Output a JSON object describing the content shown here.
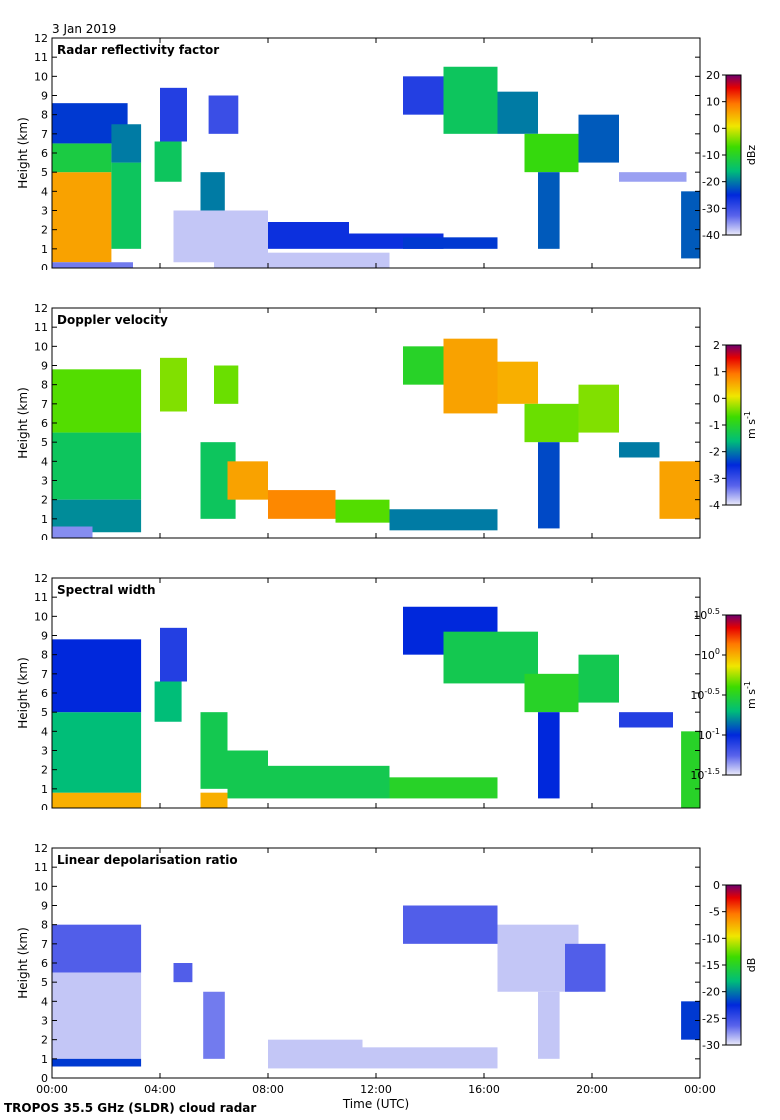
{
  "header": {
    "date": "3 Jan 2019"
  },
  "footer": {
    "instrument": "TROPOS 35.5 GHz (SLDR) cloud radar"
  },
  "chart_data": [
    {
      "type": "heatmap",
      "title": "Radar reflectivity factor",
      "xlabel": "Time (UTC)",
      "ylabel": "Height (km)",
      "xlim": [
        0,
        24
      ],
      "ylim": [
        0,
        12
      ],
      "xticks": [
        "00:00",
        "04:00",
        "08:00",
        "12:00",
        "16:00",
        "20:00",
        "00:00"
      ],
      "yticks": [
        0,
        1,
        2,
        3,
        4,
        5,
        6,
        7,
        8,
        9,
        10,
        11,
        12
      ],
      "colorbar": {
        "label": "dBz",
        "min": -40,
        "max": 20,
        "ticks": [
          20,
          10,
          0,
          -10,
          -20,
          -30,
          -40
        ]
      },
      "cells": [
        {
          "t0": 0.0,
          "t1": 2.2,
          "h0": 0.3,
          "h1": 5.0,
          "v": 6
        },
        {
          "t0": 0.0,
          "t1": 2.2,
          "h0": 5.0,
          "h1": 6.5,
          "v": -12
        },
        {
          "t0": 0.0,
          "t1": 2.8,
          "h0": 6.5,
          "h1": 8.6,
          "v": -24
        },
        {
          "t0": 2.2,
          "t1": 3.3,
          "h0": 1.0,
          "h1": 5.5,
          "v": -14
        },
        {
          "t0": 2.2,
          "t1": 3.3,
          "h0": 5.5,
          "h1": 7.5,
          "v": -20
        },
        {
          "t0": 0.0,
          "t1": 3.0,
          "h0": 0.0,
          "h1": 0.3,
          "v": -34
        },
        {
          "t0": 3.8,
          "t1": 4.8,
          "h0": 4.5,
          "h1": 6.6,
          "v": -14
        },
        {
          "t0": 4.0,
          "t1": 5.0,
          "h0": 6.6,
          "h1": 9.4,
          "v": -28
        },
        {
          "t0": 5.5,
          "t1": 6.4,
          "h0": 1.5,
          "h1": 5.0,
          "v": -20
        },
        {
          "t0": 5.8,
          "t1": 6.9,
          "h0": 7.0,
          "h1": 9.0,
          "v": -30
        },
        {
          "t0": 4.5,
          "t1": 8.0,
          "h0": 0.3,
          "h1": 3.0,
          "v": -38
        },
        {
          "t0": 8.0,
          "t1": 11.0,
          "h0": 1.0,
          "h1": 2.4,
          "v": -26
        },
        {
          "t0": 11.0,
          "t1": 14.5,
          "h0": 1.0,
          "h1": 1.8,
          "v": -26
        },
        {
          "t0": 6.0,
          "t1": 12.5,
          "h0": 0.0,
          "h1": 0.8,
          "v": -38
        },
        {
          "t0": 13.0,
          "t1": 16.5,
          "h0": 1.0,
          "h1": 1.6,
          "v": -24
        },
        {
          "t0": 13.0,
          "t1": 14.5,
          "h0": 8.0,
          "h1": 10.0,
          "v": -28
        },
        {
          "t0": 14.5,
          "t1": 16.5,
          "h0": 7.0,
          "h1": 10.5,
          "v": -14
        },
        {
          "t0": 16.5,
          "t1": 18.0,
          "h0": 7.0,
          "h1": 9.2,
          "v": -20
        },
        {
          "t0": 17.5,
          "t1": 19.5,
          "h0": 5.0,
          "h1": 7.0,
          "v": -8
        },
        {
          "t0": 18.0,
          "t1": 18.8,
          "h0": 1.0,
          "h1": 5.0,
          "v": -22
        },
        {
          "t0": 19.5,
          "t1": 21.0,
          "h0": 5.5,
          "h1": 8.0,
          "v": -22
        },
        {
          "t0": 21.0,
          "t1": 23.5,
          "h0": 4.5,
          "h1": 5.0,
          "v": -36
        },
        {
          "t0": 23.3,
          "t1": 24.0,
          "h0": 0.5,
          "h1": 4.0,
          "v": -22
        }
      ]
    },
    {
      "type": "heatmap",
      "title": "Doppler velocity",
      "xlabel": "Time (UTC)",
      "ylabel": "Height (km)",
      "xlim": [
        0,
        24
      ],
      "ylim": [
        0,
        12
      ],
      "xticks": [
        "00:00",
        "04:00",
        "08:00",
        "12:00",
        "16:00",
        "20:00",
        "00:00"
      ],
      "yticks": [
        0,
        1,
        2,
        3,
        4,
        5,
        6,
        7,
        8,
        9,
        10,
        11,
        12
      ],
      "colorbar": {
        "label": "m s-1",
        "min": -4,
        "max": 2,
        "ticks": [
          2,
          1,
          0,
          -1,
          -2,
          -3,
          -4
        ]
      },
      "cells": [
        {
          "t0": 0.0,
          "t1": 3.3,
          "h0": 5.5,
          "h1": 8.8,
          "v": -0.6
        },
        {
          "t0": 0.0,
          "t1": 3.3,
          "h0": 2.0,
          "h1": 5.5,
          "v": -1.4
        },
        {
          "t0": 0.0,
          "t1": 3.3,
          "h0": 0.3,
          "h1": 2.0,
          "v": -1.9
        },
        {
          "t0": 0.0,
          "t1": 1.5,
          "h0": 0.0,
          "h1": 0.6,
          "v": -3.5
        },
        {
          "t0": 4.0,
          "t1": 5.0,
          "h0": 6.6,
          "h1": 9.4,
          "v": -0.4
        },
        {
          "t0": 5.5,
          "t1": 6.8,
          "h0": 1.0,
          "h1": 5.0,
          "v": -1.4
        },
        {
          "t0": 6.0,
          "t1": 6.9,
          "h0": 7.0,
          "h1": 9.0,
          "v": -0.5
        },
        {
          "t0": 6.5,
          "t1": 8.0,
          "h0": 2.0,
          "h1": 4.0,
          "v": 0.6
        },
        {
          "t0": 8.0,
          "t1": 10.5,
          "h0": 1.0,
          "h1": 2.5,
          "v": 0.8
        },
        {
          "t0": 10.5,
          "t1": 12.5,
          "h0": 0.8,
          "h1": 2.0,
          "v": -0.6
        },
        {
          "t0": 12.5,
          "t1": 16.5,
          "h0": 0.4,
          "h1": 1.5,
          "v": -2.0
        },
        {
          "t0": 13.0,
          "t1": 14.5,
          "h0": 8.0,
          "h1": 10.0,
          "v": -1.0
        },
        {
          "t0": 14.5,
          "t1": 16.5,
          "h0": 6.5,
          "h1": 10.4,
          "v": 0.6
        },
        {
          "t0": 16.5,
          "t1": 18.0,
          "h0": 7.0,
          "h1": 9.2,
          "v": 0.5
        },
        {
          "t0": 17.5,
          "t1": 19.5,
          "h0": 5.0,
          "h1": 7.0,
          "v": -0.5
        },
        {
          "t0": 18.0,
          "t1": 18.8,
          "h0": 0.5,
          "h1": 5.0,
          "v": -2.3
        },
        {
          "t0": 19.5,
          "t1": 21.0,
          "h0": 5.5,
          "h1": 8.0,
          "v": -0.4
        },
        {
          "t0": 21.0,
          "t1": 22.5,
          "h0": 4.2,
          "h1": 5.0,
          "v": -2.0
        },
        {
          "t0": 22.5,
          "t1": 24.0,
          "h0": 1.0,
          "h1": 4.0,
          "v": 0.6
        }
      ]
    },
    {
      "type": "heatmap",
      "title": "Spectral width",
      "xlabel": "Time (UTC)",
      "ylabel": "Height (km)",
      "xlim": [
        0,
        24
      ],
      "ylim": [
        0,
        12
      ],
      "xticks": [
        "00:00",
        "04:00",
        "08:00",
        "12:00",
        "16:00",
        "20:00",
        "00:00"
      ],
      "yticks": [
        0,
        1,
        2,
        3,
        4,
        5,
        6,
        7,
        8,
        9,
        10,
        11,
        12
      ],
      "colorbar": {
        "label": "m s-1",
        "min": -1.5,
        "max": 0.5,
        "ticks": [
          "10^0.5",
          "10^0",
          "10^-0.5",
          "10^-1",
          "10^-1.5"
        ]
      },
      "cells": [
        {
          "t0": 0.0,
          "t1": 3.3,
          "h0": 0.0,
          "h1": 0.8,
          "v": 0.0
        },
        {
          "t0": 0.0,
          "t1": 3.3,
          "h0": 0.8,
          "h1": 5.0,
          "v": -0.7
        },
        {
          "t0": 0.0,
          "t1": 3.3,
          "h0": 5.0,
          "h1": 8.8,
          "v": -1.0
        },
        {
          "t0": 3.8,
          "t1": 4.8,
          "h0": 4.5,
          "h1": 6.6,
          "v": -0.7
        },
        {
          "t0": 4.0,
          "t1": 5.0,
          "h0": 6.6,
          "h1": 9.4,
          "v": -1.1
        },
        {
          "t0": 5.5,
          "t1": 6.5,
          "h0": 1.0,
          "h1": 5.0,
          "v": -0.6
        },
        {
          "t0": 5.5,
          "t1": 6.5,
          "h0": 0.0,
          "h1": 0.8,
          "v": 0.0
        },
        {
          "t0": 6.5,
          "t1": 8.0,
          "h0": 0.5,
          "h1": 3.0,
          "v": -0.6
        },
        {
          "t0": 8.0,
          "t1": 12.5,
          "h0": 0.5,
          "h1": 2.2,
          "v": -0.6
        },
        {
          "t0": 12.5,
          "t1": 16.5,
          "h0": 0.5,
          "h1": 1.6,
          "v": -0.5
        },
        {
          "t0": 13.0,
          "t1": 16.5,
          "h0": 8.0,
          "h1": 10.5,
          "v": -1.0
        },
        {
          "t0": 14.5,
          "t1": 18.0,
          "h0": 6.5,
          "h1": 9.2,
          "v": -0.6
        },
        {
          "t0": 17.5,
          "t1": 19.5,
          "h0": 5.0,
          "h1": 7.0,
          "v": -0.5
        },
        {
          "t0": 18.0,
          "t1": 18.8,
          "h0": 0.5,
          "h1": 5.0,
          "v": -1.0
        },
        {
          "t0": 19.5,
          "t1": 21.0,
          "h0": 5.5,
          "h1": 8.0,
          "v": -0.6
        },
        {
          "t0": 21.0,
          "t1": 23.0,
          "h0": 4.2,
          "h1": 5.0,
          "v": -1.1
        },
        {
          "t0": 23.3,
          "t1": 24.0,
          "h0": 0.0,
          "h1": 4.0,
          "v": -0.5
        }
      ]
    },
    {
      "type": "heatmap",
      "title": "Linear depolarisation ratio",
      "xlabel": "Time (UTC)",
      "ylabel": "Height (km)",
      "xlim": [
        0,
        24
      ],
      "ylim": [
        0,
        12
      ],
      "xticks": [
        "00:00",
        "04:00",
        "08:00",
        "12:00",
        "16:00",
        "20:00",
        "00:00"
      ],
      "yticks": [
        0,
        1,
        2,
        3,
        4,
        5,
        6,
        7,
        8,
        9,
        10,
        11,
        12
      ],
      "colorbar": {
        "label": "dB",
        "min": -30,
        "max": 0,
        "ticks": [
          0,
          -5,
          -10,
          -15,
          -20,
          -25,
          -30
        ]
      },
      "cells": [
        {
          "t0": 0.0,
          "t1": 3.3,
          "h0": 5.5,
          "h1": 8.0,
          "v": -26
        },
        {
          "t0": 0.0,
          "t1": 3.3,
          "h0": 1.0,
          "h1": 5.5,
          "v": -29
        },
        {
          "t0": 0.0,
          "t1": 3.3,
          "h0": 0.6,
          "h1": 1.0,
          "v": -22
        },
        {
          "t0": 4.5,
          "t1": 5.2,
          "h0": 5.0,
          "h1": 6.0,
          "v": -26
        },
        {
          "t0": 5.6,
          "t1": 6.4,
          "h0": 1.0,
          "h1": 4.5,
          "v": -27
        },
        {
          "t0": 8.0,
          "t1": 11.5,
          "h0": 0.5,
          "h1": 2.0,
          "v": -29
        },
        {
          "t0": 11.5,
          "t1": 16.5,
          "h0": 0.5,
          "h1": 1.6,
          "v": -29
        },
        {
          "t0": 13.0,
          "t1": 16.5,
          "h0": 7.0,
          "h1": 9.0,
          "v": -26
        },
        {
          "t0": 16.5,
          "t1": 19.5,
          "h0": 4.5,
          "h1": 8.0,
          "v": -29
        },
        {
          "t0": 18.0,
          "t1": 18.8,
          "h0": 1.0,
          "h1": 4.5,
          "v": -29
        },
        {
          "t0": 19.0,
          "t1": 20.5,
          "h0": 4.5,
          "h1": 7.0,
          "v": -26
        },
        {
          "t0": 23.3,
          "t1": 24.0,
          "h0": 2.0,
          "h1": 4.0,
          "v": -22
        }
      ]
    }
  ]
}
